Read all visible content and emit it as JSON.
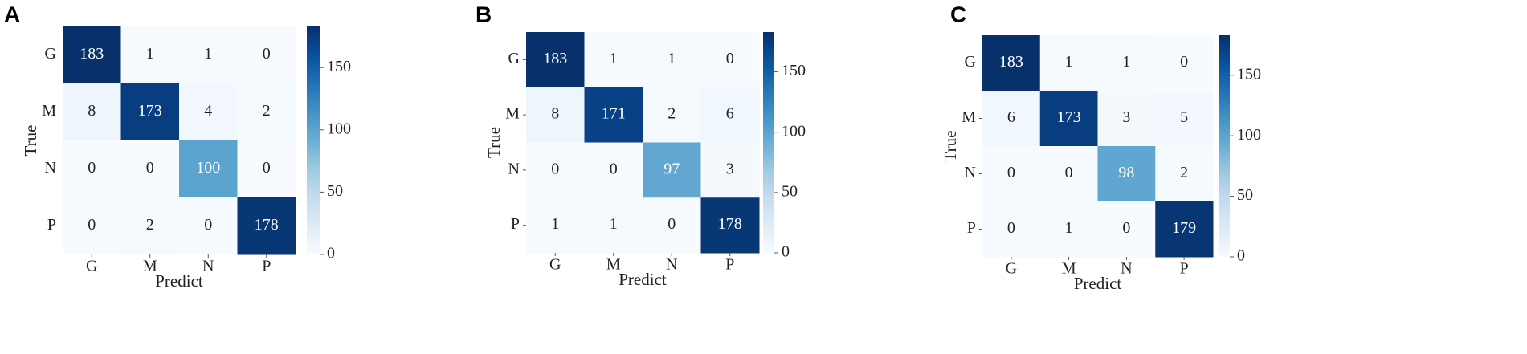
{
  "chart_data": [
    {
      "type": "heatmap",
      "panel_label": "A",
      "xlabel": "Predict",
      "ylabel": "True",
      "x_categories": [
        "G",
        "M",
        "N",
        "P"
      ],
      "y_categories": [
        "G",
        "M",
        "N",
        "P"
      ],
      "values": [
        [
          183,
          1,
          1,
          0
        ],
        [
          8,
          173,
          4,
          2
        ],
        [
          0,
          0,
          100,
          0
        ],
        [
          0,
          2,
          0,
          178
        ]
      ],
      "colormap": "Blues",
      "zlim": [
        0,
        183
      ],
      "zticks": [
        0,
        50,
        100,
        150
      ]
    },
    {
      "type": "heatmap",
      "panel_label": "B",
      "xlabel": "Predict",
      "ylabel": "True",
      "x_categories": [
        "G",
        "M",
        "N",
        "P"
      ],
      "y_categories": [
        "G",
        "M",
        "N",
        "P"
      ],
      "values": [
        [
          183,
          1,
          1,
          0
        ],
        [
          8,
          171,
          2,
          6
        ],
        [
          0,
          0,
          97,
          3
        ],
        [
          1,
          1,
          0,
          178
        ]
      ],
      "colormap": "Blues",
      "zlim": [
        0,
        183
      ],
      "zticks": [
        0,
        50,
        100,
        150
      ]
    },
    {
      "type": "heatmap",
      "panel_label": "C",
      "xlabel": "Predict",
      "ylabel": "True",
      "x_categories": [
        "G",
        "M",
        "N",
        "P"
      ],
      "y_categories": [
        "G",
        "M",
        "N",
        "P"
      ],
      "values": [
        [
          183,
          1,
          1,
          0
        ],
        [
          6,
          173,
          3,
          5
        ],
        [
          0,
          0,
          98,
          2
        ],
        [
          0,
          1,
          0,
          179
        ]
      ],
      "colormap": "Blues",
      "zlim": [
        0,
        183
      ],
      "zticks": [
        0,
        50,
        100,
        150
      ]
    }
  ]
}
